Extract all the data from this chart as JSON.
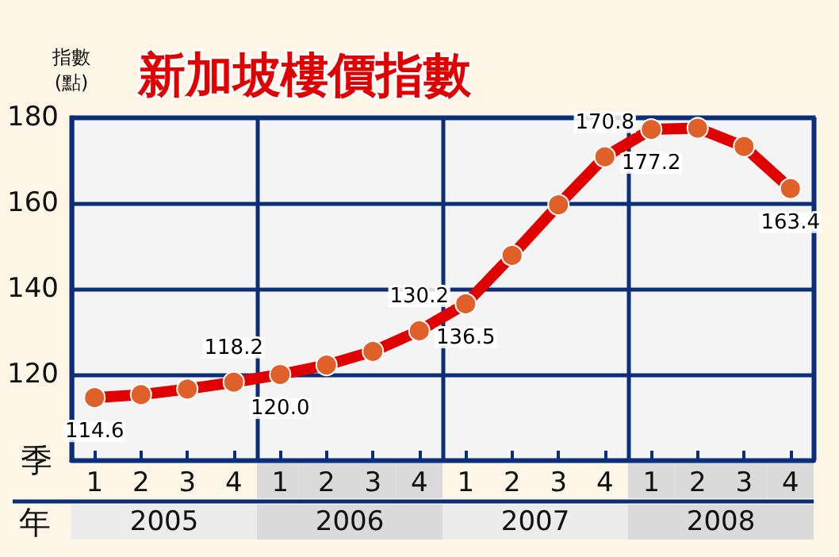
{
  "chart_data": {
    "type": "line",
    "title": "新加坡樓價指數",
    "ylabel": "指數\n(點)",
    "xlabel": "季",
    "categories": [
      "1",
      "2",
      "3",
      "4",
      "1",
      "2",
      "3",
      "4",
      "1",
      "2",
      "3",
      "4",
      "1",
      "2",
      "3",
      "4"
    ],
    "annotations": [
      "年",
      "2005",
      "2006",
      "2007",
      "2008"
    ],
    "series": [
      {
        "color": "#e00000",
        "values": [
          114.6,
          115.3,
          116.6,
          118.2,
          120.0,
          122.2,
          125.4,
          130.2,
          136.5,
          147.8,
          159.6,
          170.8,
          177.2,
          177.5,
          173.2,
          163.4
        ],
        "value_labels": [
          "114.6",
          null,
          null,
          "118.2",
          "120.0",
          null,
          null,
          "130.2",
          "136.5",
          null,
          null,
          "170.8",
          "177.2",
          null,
          null,
          "163.4"
        ]
      }
    ],
    "ylim": [
      100,
      180
    ],
    "yticks": [
      120,
      140,
      160,
      180
    ],
    "grid": true,
    "marker": "circle",
    "line_style": "solid"
  }
}
